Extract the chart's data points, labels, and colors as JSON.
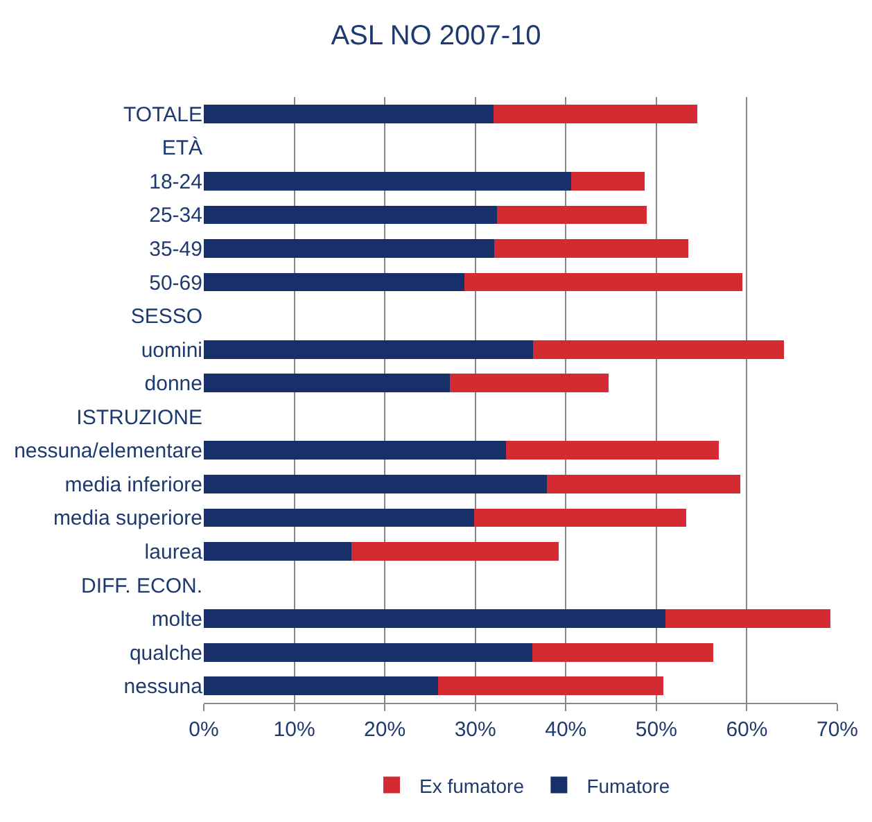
{
  "chart_data": {
    "type": "bar",
    "orientation": "horizontal",
    "stacked": true,
    "title": "ASL NO 2007-10",
    "categories": [
      "TOTALE",
      "ETÀ",
      "18-24",
      "25-34",
      "35-49",
      "50-69",
      "SESSO",
      "uomini",
      "donne",
      "ISTRUZIONE",
      "nessuna/elementare",
      "media inferiore",
      "media superiore",
      "laurea",
      "DIFF. ECON.",
      "molte",
      "qualche",
      "nessuna"
    ],
    "series": [
      {
        "name": "Fumatore",
        "color": "#17306a",
        "values": [
          32.0,
          null,
          40.6,
          32.4,
          32.1,
          28.8,
          null,
          36.4,
          27.2,
          null,
          33.4,
          37.9,
          29.9,
          16.3,
          null,
          51.0,
          36.3,
          25.9
        ]
      },
      {
        "name": "Ex fumatore",
        "color": "#d42b33",
        "values": [
          22.5,
          null,
          8.1,
          16.5,
          21.4,
          30.7,
          null,
          27.7,
          17.5,
          null,
          23.5,
          21.4,
          23.4,
          22.9,
          null,
          18.2,
          20.0,
          24.9
        ]
      }
    ],
    "xlim": [
      0,
      70
    ],
    "xticks": [
      {
        "value": 0,
        "label": "0%"
      },
      {
        "value": 10,
        "label": "10%"
      },
      {
        "value": 20,
        "label": "20%"
      },
      {
        "value": 30,
        "label": "30%"
      },
      {
        "value": 40,
        "label": "40%"
      },
      {
        "value": 50,
        "label": "50%"
      },
      {
        "value": 60,
        "label": "60%"
      },
      {
        "value": 70,
        "label": "70%"
      }
    ],
    "grid": "x",
    "legend": "bottom"
  }
}
